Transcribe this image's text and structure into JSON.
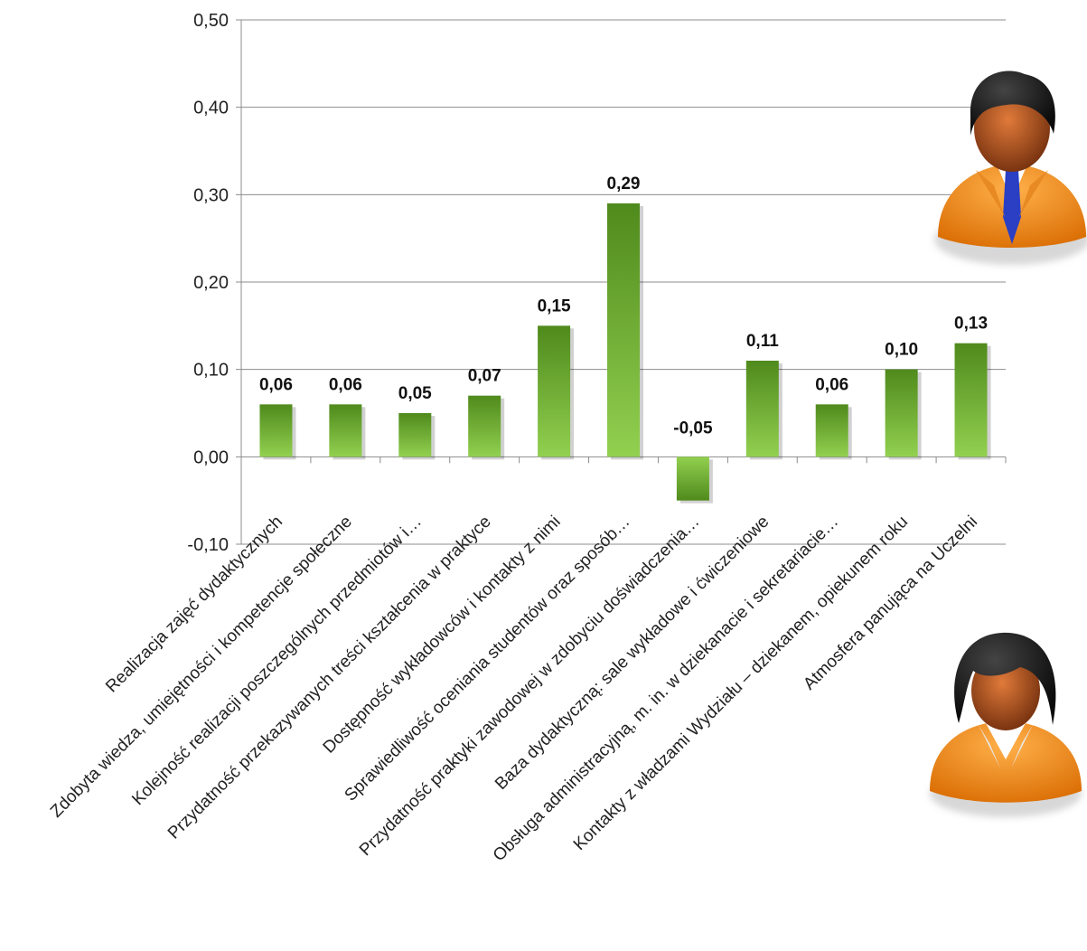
{
  "chart_data": {
    "type": "bar",
    "categories": [
      "Realizacja zajęć dydaktycznych",
      "Zdobyta wiedza, umiejętności  i kompetencje społeczne",
      "Kolejność realizacji poszczególnych przedmiotów i…",
      "Przydatność przekazywanych treści kształcenia w praktyce",
      "Dostępność wykładowców i kontakty z nimi",
      "Sprawiedliwość oceniania studentów oraz sposób…",
      "Przydatność praktyki zawodowej w zdobyciu doświadczenia…",
      "Baza dydaktyczną: sale wykładowe i ćwiczeniowe",
      "Obsługa administracyjną, m. in. w dziekanacie i sekretariacie…",
      "Kontakty z władzami Wydziału – dziekanem, opiekunem roku",
      "Atmosfera panująca na Uczelni"
    ],
    "values": [
      0.06,
      0.06,
      0.05,
      0.07,
      0.15,
      0.29,
      -0.05,
      0.11,
      0.06,
      0.1,
      0.13
    ],
    "value_labels": [
      "0,06",
      "0,06",
      "0,05",
      "0,07",
      "0,15",
      "0,29",
      "-0,05",
      "0,11",
      "0,06",
      "0,10",
      "0,13"
    ],
    "y_ticks": [
      -0.1,
      0.0,
      0.1,
      0.2,
      0.3,
      0.4,
      0.5
    ],
    "y_tick_labels": [
      "-0,10",
      "0,00",
      "0,10",
      "0,20",
      "0,30",
      "0,40",
      "0,50"
    ],
    "ylim": [
      -0.1,
      0.5
    ],
    "grid": true,
    "colors": {
      "bar_top": "#4f8a1c",
      "bar_bottom": "#92d050",
      "grid": "#8c8c8c"
    }
  },
  "icons": {
    "male": "man-avatar-icon",
    "female": "woman-avatar-icon"
  }
}
